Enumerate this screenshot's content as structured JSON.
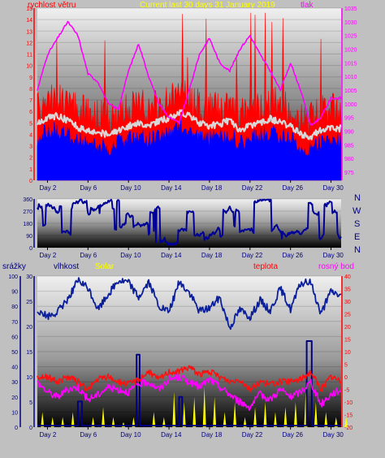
{
  "header": {
    "left_label": "rychlost větru",
    "title": "Current last 30 days 31 January 2019",
    "right_label": "tlak"
  },
  "compass": [
    "N",
    "W",
    "S",
    "E",
    "N"
  ],
  "bottom_labels": {
    "rain": "srážky",
    "humidity": "vlhkost",
    "solar": "Solar",
    "temp": "teplota",
    "dew": "rosný bod"
  },
  "colors": {
    "background": "#c0c0c0",
    "wind_speed": "#ff0000",
    "wind_avg": "#0000ff",
    "pressure": "#ff00ff",
    "gust_white": "#d8d8d8",
    "direction": "#000099",
    "humidity": "#0a1f99",
    "temperature": "#ff1010",
    "dew_point": "#ff00ff",
    "solar": "#ffff00",
    "rain": "#000080",
    "title": "#ffff00"
  },
  "chart_data": [
    {
      "type": "line",
      "name": "wind-and-pressure",
      "x_ticks": [
        "Day 2",
        "Day 6",
        "Day 10",
        "Day 14",
        "Day 18",
        "Day 22",
        "Day 26",
        "Day 30"
      ],
      "y_left": {
        "label": "rychlost větru",
        "ticks": [
          0,
          1,
          2,
          3,
          4,
          5,
          6,
          7,
          8,
          9,
          10,
          11,
          12,
          13,
          14,
          15
        ],
        "range": [
          0,
          15
        ]
      },
      "y_right": {
        "label": "tlak",
        "ticks": [
          975,
          980,
          985,
          990,
          995,
          1000,
          1005,
          1010,
          1015,
          1020,
          1025,
          1030,
          1035
        ],
        "range": [
          972,
          1035
        ]
      },
      "series": [
        {
          "name": "tlak",
          "axis": "right",
          "days": [
            1,
            2,
            3,
            4,
            5,
            6,
            7,
            8,
            9,
            10,
            11,
            12,
            13,
            14,
            15,
            16,
            17,
            18,
            19,
            20,
            21,
            22,
            23,
            24,
            25,
            26,
            27,
            28,
            29,
            30,
            31
          ],
          "values": [
            1005,
            1018,
            1024,
            1030,
            1025,
            1011,
            1008,
            1000,
            998,
            1012,
            1022,
            1010,
            1000,
            995,
            993,
            1005,
            1018,
            1024,
            1015,
            1012,
            1020,
            1025,
            1018,
            1012,
            1005,
            1015,
            1005,
            992,
            995,
            1002,
            1002
          ]
        }
      ]
    },
    {
      "type": "line",
      "name": "wind-direction",
      "x_ticks": [
        "Day 2",
        "Day 6",
        "Day 10",
        "Day 14",
        "Day 18",
        "Day 22",
        "Day 26",
        "Day 30"
      ],
      "y": {
        "ticks": [
          0,
          90,
          180,
          270,
          360
        ],
        "range": [
          0,
          360
        ]
      }
    },
    {
      "type": "line",
      "name": "humidity-temperature",
      "x_ticks": [
        "Day 2",
        "Day 6",
        "Day 10",
        "Day 14",
        "Day 18",
        "Day 22",
        "Day 26",
        "Day 30"
      ],
      "y_left_outer": {
        "label": "srážky",
        "ticks": [
          0,
          10,
          20,
          30,
          40,
          50,
          60,
          70,
          80,
          90,
          100
        ],
        "range": [
          0,
          100
        ]
      },
      "y_left_inner": {
        "label": "vlhkost",
        "ticks": [
          0,
          5,
          10,
          15,
          20,
          25,
          30
        ],
        "range": [
          0,
          30
        ]
      },
      "y_right": {
        "label": "teplota",
        "ticks": [
          -20,
          -15,
          -10,
          -5,
          0,
          5,
          10,
          15,
          20,
          25,
          30,
          35,
          40
        ],
        "range": [
          -20,
          40
        ]
      },
      "series": [
        {
          "name": "vlhkost",
          "days": [
            1,
            2,
            3,
            4,
            5,
            6,
            7,
            8,
            9,
            10,
            11,
            12,
            13,
            14,
            15,
            16,
            17,
            18,
            19,
            20,
            21,
            22,
            23,
            24,
            25,
            26,
            27,
            28,
            29,
            30,
            31
          ],
          "values": [
            78,
            73,
            76,
            85,
            97,
            92,
            78,
            88,
            97,
            96,
            86,
            96,
            80,
            76,
            96,
            89,
            77,
            79,
            86,
            66,
            78,
            73,
            84,
            77,
            92,
            78,
            95,
            96,
            75,
            90,
            87
          ]
        },
        {
          "name": "teplota",
          "days": [
            1,
            2,
            3,
            4,
            5,
            6,
            7,
            8,
            9,
            10,
            11,
            12,
            13,
            14,
            15,
            16,
            17,
            18,
            19,
            20,
            21,
            22,
            23,
            24,
            25,
            26,
            27,
            28,
            29,
            30,
            31
          ],
          "values": [
            0,
            0,
            -2,
            0,
            -2,
            -5,
            -1,
            0,
            -2,
            -3,
            -1,
            2,
            -1,
            2,
            2,
            4,
            1,
            2,
            0,
            -2,
            -1,
            -5,
            -2,
            -3,
            -2,
            -2,
            -1,
            2,
            -5,
            0,
            -2
          ]
        },
        {
          "name": "rosný bod",
          "days": [
            1,
            2,
            3,
            4,
            5,
            6,
            7,
            8,
            9,
            10,
            11,
            12,
            13,
            14,
            15,
            16,
            17,
            18,
            19,
            20,
            21,
            22,
            23,
            24,
            25,
            26,
            27,
            28,
            29,
            30,
            31
          ],
          "values": [
            -2,
            -6,
            -8,
            -5,
            -4,
            -9,
            -7,
            -4,
            -5,
            -6,
            -3,
            -2,
            -5,
            -1,
            0,
            -2,
            -4,
            -1,
            -4,
            -7,
            -10,
            -12,
            -7,
            -9,
            -5,
            -8,
            -6,
            -2,
            -11,
            -7,
            -5
          ]
        },
        {
          "name": "Solar",
          "days": [
            1,
            2,
            3,
            4,
            5,
            6,
            7,
            8,
            9,
            10,
            11,
            12,
            13,
            14,
            15,
            16,
            17,
            18,
            19,
            20,
            21,
            22,
            23,
            24,
            25,
            26,
            27,
            28,
            29,
            30,
            31
          ],
          "values": [
            3,
            2,
            2,
            3,
            0,
            2,
            4,
            2,
            1,
            2,
            0,
            3,
            2,
            7,
            5,
            6,
            8,
            6,
            3,
            5,
            2,
            4,
            5,
            3,
            4,
            5,
            7,
            5,
            3,
            2,
            2
          ]
        }
      ]
    }
  ]
}
